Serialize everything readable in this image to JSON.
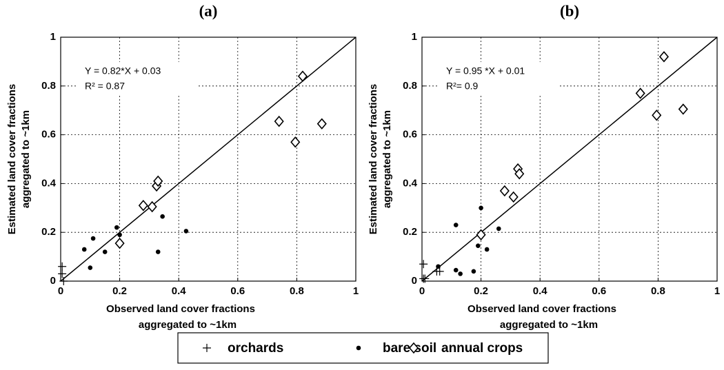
{
  "chart_data": [
    {
      "type": "scatter",
      "title": "(a)",
      "xlabel": [
        "Observed land cover fractions",
        "aggregated to ~1km"
      ],
      "ylabel": [
        "Estimated land cover fractions",
        "aggregated to ~1km"
      ],
      "annotations": [
        "Y  = 0.82*X + 0.03",
        "R² = 0.87"
      ],
      "xlim": [
        0,
        1
      ],
      "ylim": [
        0,
        1
      ],
      "xticks": [
        0,
        0.2,
        0.4,
        0.6,
        0.8,
        1
      ],
      "yticks": [
        0,
        0.2,
        0.4,
        0.6,
        0.8,
        1
      ],
      "grid": true,
      "series": [
        {
          "name": "orchards",
          "marker": "plus",
          "color": "#000000",
          "x": [
            0.005,
            0.005,
            0.01
          ],
          "values": [
            0.06,
            0.03,
            0.0
          ]
        },
        {
          "name": "bare soil",
          "marker": "dot",
          "color": "#000000",
          "x": [
            0.08,
            0.11,
            0.1,
            0.15,
            0.19,
            0.2,
            0.345,
            0.33,
            0.425
          ],
          "values": [
            0.13,
            0.175,
            0.055,
            0.12,
            0.22,
            0.19,
            0.265,
            0.12,
            0.205
          ]
        },
        {
          "name": "annual crops",
          "marker": "diamond",
          "color": "#000000",
          "x": [
            0.2,
            0.28,
            0.31,
            0.325,
            0.33,
            0.74,
            0.795,
            0.82,
            0.885
          ],
          "values": [
            0.155,
            0.31,
            0.305,
            0.39,
            0.41,
            0.655,
            0.57,
            0.84,
            0.645
          ]
        }
      ]
    },
    {
      "type": "scatter",
      "title": "(b)",
      "xlabel": [
        "Observed land cover fractions",
        "aggregated to ~1km"
      ],
      "ylabel": [
        "Estimated land cover fractions",
        "aggregated to ~1km"
      ],
      "annotations": [
        "Y  = 0.95 *X + 0.01",
        "R²= 0.9"
      ],
      "xlim": [
        0,
        1
      ],
      "ylim": [
        0,
        1
      ],
      "xticks": [
        0,
        0.2,
        0.4,
        0.6,
        0.8,
        1
      ],
      "yticks": [
        0,
        0.2,
        0.4,
        0.6,
        0.8,
        1
      ],
      "grid": true,
      "series": [
        {
          "marker": "plus",
          "color": "#000000",
          "x": [
            0.005,
            0.005,
            0.01,
            0.05,
            0.06
          ],
          "values": [
            0.07,
            0.01,
            0.01,
            0.04,
            0.04
          ]
        },
        {
          "marker": "dot",
          "color": "#000000",
          "x": [
            0.055,
            0.115,
            0.115,
            0.13,
            0.175,
            0.19,
            0.2,
            0.22,
            0.26
          ],
          "values": [
            0.06,
            0.23,
            0.045,
            0.03,
            0.04,
            0.145,
            0.3,
            0.13,
            0.215
          ]
        },
        {
          "marker": "diamond",
          "color": "#000000",
          "x": [
            0.2,
            0.28,
            0.31,
            0.325,
            0.33,
            0.74,
            0.795,
            0.82,
            0.885
          ],
          "values": [
            0.19,
            0.37,
            0.345,
            0.46,
            0.44,
            0.77,
            0.68,
            0.92,
            0.705
          ]
        }
      ]
    }
  ]
}
